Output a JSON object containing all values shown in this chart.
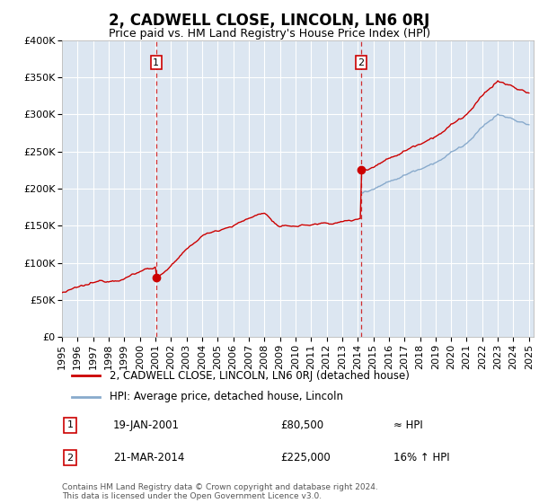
{
  "title": "2, CADWELL CLOSE, LINCOLN, LN6 0RJ",
  "subtitle": "Price paid vs. HM Land Registry's House Price Index (HPI)",
  "plot_bg_color": "#dce6f1",
  "ylim": [
    0,
    400000
  ],
  "yticks": [
    0,
    50000,
    100000,
    150000,
    200000,
    250000,
    300000,
    350000,
    400000
  ],
  "ytick_labels": [
    "£0",
    "£50K",
    "£100K",
    "£150K",
    "£200K",
    "£250K",
    "£300K",
    "£350K",
    "£400K"
  ],
  "xlim_start": 1995.0,
  "xlim_end": 2025.3,
  "xtick_years": [
    1995,
    1996,
    1997,
    1998,
    1999,
    2000,
    2001,
    2002,
    2003,
    2004,
    2005,
    2006,
    2007,
    2008,
    2009,
    2010,
    2011,
    2012,
    2013,
    2014,
    2015,
    2016,
    2017,
    2018,
    2019,
    2020,
    2021,
    2022,
    2023,
    2024,
    2025
  ],
  "sale1_x": 2001.05,
  "sale1_y": 80500,
  "sale2_x": 2014.22,
  "sale2_y": 225000,
  "marker_color": "#cc0000",
  "line_color": "#cc0000",
  "hpi_color": "#88aacc",
  "vline_color": "#cc0000",
  "annotation1_label": "1",
  "annotation2_label": "2",
  "legend_property_label": "2, CADWELL CLOSE, LINCOLN, LN6 0RJ (detached house)",
  "legend_hpi_label": "HPI: Average price, detached house, Lincoln",
  "table_rows": [
    [
      "1",
      "19-JAN-2001",
      "£80,500",
      "≈ HPI"
    ],
    [
      "2",
      "21-MAR-2014",
      "£225,000",
      "16% ↑ HPI"
    ]
  ],
  "footer_text": "Contains HM Land Registry data © Crown copyright and database right 2024.\nThis data is licensed under the Open Government Licence v3.0.",
  "title_fontsize": 12,
  "subtitle_fontsize": 9,
  "tick_fontsize": 8
}
